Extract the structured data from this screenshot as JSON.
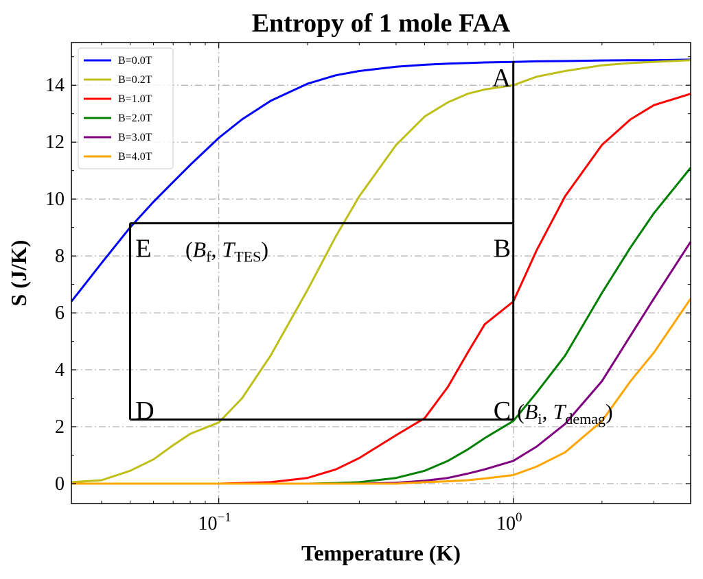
{
  "chart_data": {
    "type": "line",
    "title": "Entropy of 1 mole FAA",
    "xlabel": "Temperature (K)",
    "ylabel": "S (J/K)",
    "xscale": "log",
    "xlim": [
      0.0316,
      4.0
    ],
    "ylim": [
      -0.7,
      15.5
    ],
    "yticks": [
      0,
      2,
      4,
      6,
      8,
      10,
      12,
      14
    ],
    "xticks": [
      {
        "value": 0.1,
        "base": "10",
        "exp": "−1"
      },
      {
        "value": 1.0,
        "base": "10",
        "exp": "0"
      }
    ],
    "grid": true,
    "legend_position": "top-left",
    "x": [
      0.0316,
      0.04,
      0.05,
      0.06,
      0.07,
      0.08,
      0.1,
      0.12,
      0.15,
      0.2,
      0.25,
      0.3,
      0.4,
      0.5,
      0.6,
      0.7,
      0.8,
      1.0,
      1.2,
      1.5,
      2.0,
      2.5,
      3.0,
      4.0
    ],
    "series": [
      {
        "name": "B=0.0T",
        "color": "#0000ff",
        "values": [
          6.4,
          7.75,
          9.0,
          9.9,
          10.6,
          11.2,
          12.15,
          12.8,
          13.45,
          14.05,
          14.35,
          14.5,
          14.65,
          14.72,
          14.76,
          14.78,
          14.8,
          14.82,
          14.84,
          14.85,
          14.87,
          14.88,
          14.88,
          14.9
        ]
      },
      {
        "name": "B=0.2T",
        "color": "#bfbf1a",
        "values": [
          0.05,
          0.12,
          0.45,
          0.85,
          1.35,
          1.75,
          2.15,
          3.0,
          4.5,
          6.8,
          8.7,
          10.1,
          11.9,
          12.9,
          13.4,
          13.7,
          13.85,
          14.0,
          14.3,
          14.5,
          14.7,
          14.78,
          14.82,
          14.88
        ]
      },
      {
        "name": "B=1.0T",
        "color": "#ff0000",
        "values": [
          0.0,
          0.0,
          0.0,
          0.0,
          0.0,
          0.0,
          0.0,
          0.02,
          0.05,
          0.2,
          0.5,
          0.9,
          1.7,
          2.3,
          3.4,
          4.6,
          5.6,
          6.4,
          8.2,
          10.1,
          11.9,
          12.8,
          13.3,
          13.7
        ]
      },
      {
        "name": "B=2.0T",
        "color": "#008000",
        "values": [
          0.0,
          0.0,
          0.0,
          0.0,
          0.0,
          0.0,
          0.0,
          0.0,
          0.0,
          0.0,
          0.02,
          0.05,
          0.2,
          0.45,
          0.8,
          1.2,
          1.6,
          2.2,
          3.2,
          4.5,
          6.7,
          8.3,
          9.5,
          11.1
        ]
      },
      {
        "name": "B=3.0T",
        "color": "#800080",
        "values": [
          0.0,
          0.0,
          0.0,
          0.0,
          0.0,
          0.0,
          0.0,
          0.0,
          0.0,
          0.0,
          0.0,
          0.0,
          0.03,
          0.1,
          0.2,
          0.35,
          0.5,
          0.8,
          1.3,
          2.1,
          3.6,
          5.2,
          6.5,
          8.5
        ]
      },
      {
        "name": "B=4.0T",
        "color": "#ffa500",
        "values": [
          0.0,
          0.0,
          0.0,
          0.0,
          0.0,
          0.0,
          0.0,
          0.0,
          0.0,
          0.0,
          0.0,
          0.0,
          0.0,
          0.05,
          0.08,
          0.12,
          0.18,
          0.3,
          0.6,
          1.1,
          2.2,
          3.6,
          4.6,
          6.5
        ]
      }
    ],
    "cycle_lines": [
      {
        "from": [
          1.0,
          14.85
        ],
        "to": [
          1.0,
          2.25
        ]
      },
      {
        "from": [
          0.05,
          9.15
        ],
        "to": [
          1.0,
          9.15
        ]
      },
      {
        "from": [
          0.05,
          9.15
        ],
        "to": [
          0.05,
          2.25
        ]
      },
      {
        "from": [
          0.05,
          2.25
        ],
        "to": [
          1.0,
          2.25
        ]
      }
    ],
    "points": [
      {
        "label": "A",
        "x": 0.92,
        "y": 14.3
      },
      {
        "label": "B",
        "x": 0.92,
        "y": 8.3
      },
      {
        "label": "C",
        "x": 0.92,
        "y": 2.6
      },
      {
        "label": "D",
        "x": 0.055,
        "y": 2.6
      },
      {
        "label": "E",
        "x": 0.055,
        "y": 8.3
      }
    ],
    "annotations": [
      {
        "id": "bf_tes",
        "open": "(",
        "var1": "B",
        "sub1": "f",
        "sep": ", ",
        "var2": "T",
        "sub2": "TES",
        "close": ")",
        "x": 0.077,
        "y": 8.3
      },
      {
        "id": "bi_tdemag",
        "open": "(",
        "var1": "B",
        "sub1": "i",
        "sep": ", ",
        "var2": "T",
        "sub2": "demag",
        "close": ")",
        "x": 1.03,
        "y": 2.6
      }
    ]
  }
}
